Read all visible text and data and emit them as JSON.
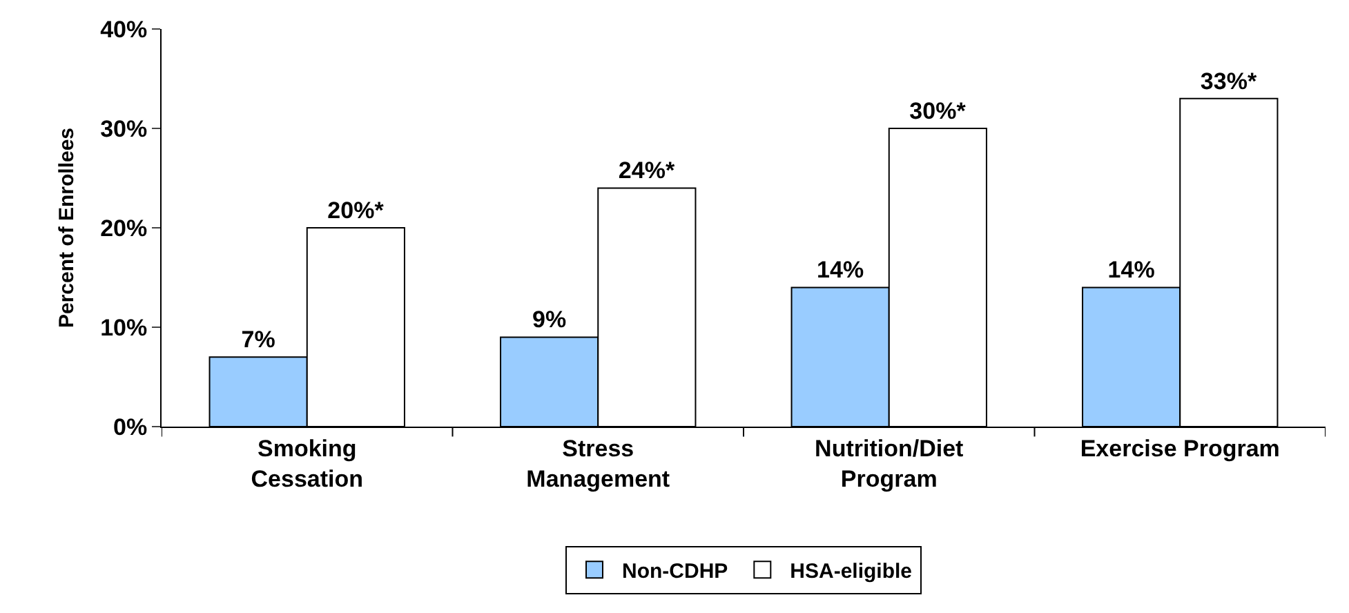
{
  "chart_data": {
    "type": "bar",
    "ylabel": "Percent of Enrollees",
    "categories": [
      "Smoking Cessation",
      "Stress Management",
      "Nutrition/Diet Program",
      "Exercise Program"
    ],
    "series": [
      {
        "name": "Non-CDHP",
        "color": "#99ccff",
        "values": [
          7,
          9,
          14,
          14
        ],
        "value_labels": [
          "7%",
          "9%",
          "14%",
          "14%"
        ]
      },
      {
        "name": "HSA-eligible",
        "color": "#ffffff",
        "values": [
          20,
          24,
          30,
          33
        ],
        "value_labels": [
          "20%*",
          "24%*",
          "30%*",
          "33%*"
        ]
      }
    ],
    "ylim": [
      0,
      40
    ],
    "yticks": [
      {
        "value": 0,
        "label": "0%"
      },
      {
        "value": 10,
        "label": "10%"
      },
      {
        "value": 20,
        "label": "20%"
      },
      {
        "value": 30,
        "label": "30%"
      },
      {
        "value": 40,
        "label": "40%"
      }
    ],
    "legend": "bottom"
  }
}
